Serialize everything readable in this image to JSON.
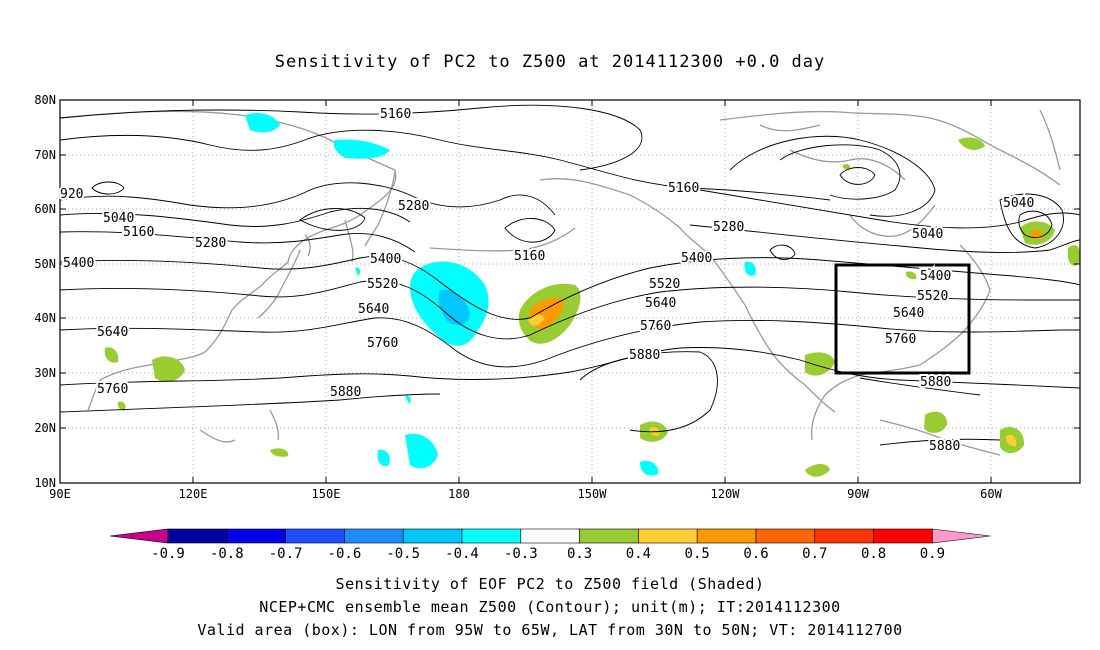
{
  "title": "Sensitivity of PC2 to Z500 at 2014112300 +0.0 day",
  "lat_labels": [
    "80N",
    "70N",
    "60N",
    "50N",
    "40N",
    "30N",
    "20N",
    "10N"
  ],
  "lon_labels": [
    "90E",
    "120E",
    "150E",
    "180",
    "150W",
    "120W",
    "90W",
    "60W"
  ],
  "contour_labels": [
    {
      "text": "5160",
      "color": "#000"
    },
    {
      "text": "920",
      "color": "#000"
    },
    {
      "text": "5040",
      "color": "#000"
    },
    {
      "text": "5160",
      "color": "#000"
    },
    {
      "text": "5280",
      "color": "#000"
    },
    {
      "text": "5400",
      "color": "#000"
    },
    {
      "text": "5640",
      "color": "#000"
    },
    {
      "text": "5760",
      "color": "#000"
    },
    {
      "text": "5280",
      "color": "#000"
    },
    {
      "text": "5400",
      "color": "#000"
    },
    {
      "text": "5520",
      "color": "#000"
    },
    {
      "text": "5640",
      "color": "#000"
    },
    {
      "text": "5760",
      "color": "#000"
    },
    {
      "text": "5880",
      "color": "#000"
    },
    {
      "text": "5160",
      "color": "#000"
    },
    {
      "text": "5160",
      "color": "#000"
    },
    {
      "text": "5280",
      "color": "#000"
    },
    {
      "text": "5400",
      "color": "#000"
    },
    {
      "text": "5520",
      "color": "#000"
    },
    {
      "text": "5640",
      "color": "#000"
    },
    {
      "text": "5760",
      "color": "#000"
    },
    {
      "text": "5880",
      "color": "#000"
    },
    {
      "text": "5040",
      "color": "#000"
    },
    {
      "text": "5040",
      "color": "#000"
    },
    {
      "text": "5400",
      "color": "#000"
    },
    {
      "text": "5520",
      "color": "#000"
    },
    {
      "text": "5640",
      "color": "#000"
    },
    {
      "text": "5760",
      "color": "#000"
    },
    {
      "text": "5880",
      "color": "#000"
    },
    {
      "text": "5880",
      "color": "#000"
    }
  ],
  "colorbar": {
    "labels": [
      "-0.9",
      "-0.8",
      "-0.7",
      "-0.6",
      "-0.5",
      "-0.4",
      "-0.3",
      "0.3",
      "0.4",
      "0.5",
      "0.6",
      "0.7",
      "0.8",
      "0.9"
    ],
    "colors": [
      "#c8008c",
      "#0000a0",
      "#0000e6",
      "#1e50ff",
      "#1e8cff",
      "#00c8ff",
      "#00ffff",
      "#ffffff",
      "#99cc33",
      "#ffcc33",
      "#ff9900",
      "#ff6600",
      "#ff3300",
      "#ff0000",
      "#ff99cc"
    ]
  },
  "captions": [
    "Sensitivity of EOF PC2 to Z500 field (Shaded)",
    "NCEP+CMC ensemble mean Z500 (Contour); unit(m); IT:2014112300",
    "Valid area (box): LON from 95W to 65W, LAT from 30N to 50N; VT: 2014112700"
  ]
}
